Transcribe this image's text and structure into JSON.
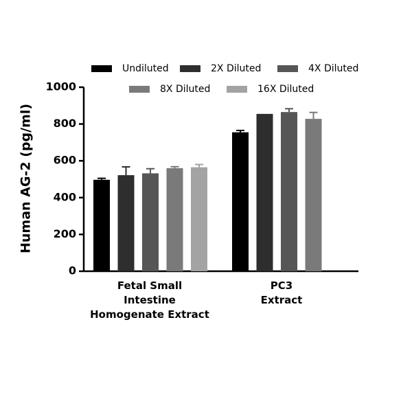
{
  "chart_data": {
    "type": "bar",
    "y_label": "Human AG-2 (pg/ml)",
    "categories": [
      "Fetal Small\nIntestine\nHomogenate Extract",
      "PC3\nExtract"
    ],
    "series": [
      {
        "name": "Undiluted",
        "color": "#000000",
        "values": [
          497,
          755
        ],
        "errors": [
          8,
          10
        ]
      },
      {
        "name": "2X Diluted",
        "color": "#2e2e2e",
        "values": [
          522,
          855
        ],
        "errors": [
          45,
          null
        ]
      },
      {
        "name": "4X Diluted",
        "color": "#565656",
        "values": [
          532,
          865
        ],
        "errors": [
          25,
          18
        ]
      },
      {
        "name": "8X Diluted",
        "color": "#7a7a7a",
        "values": [
          560,
          828
        ],
        "errors": [
          8,
          35
        ]
      },
      {
        "name": "16X Diluted",
        "color": "#a3a3a3",
        "values": [
          565,
          null
        ],
        "errors": [
          15,
          null
        ]
      }
    ],
    "ylim": [
      0,
      1000
    ],
    "yticks": [
      0,
      200,
      400,
      600,
      800,
      1000
    ]
  }
}
